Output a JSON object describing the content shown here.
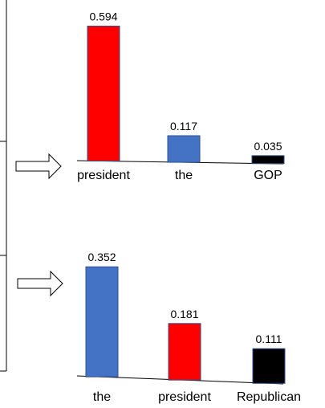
{
  "chart_data": [
    {
      "type": "bar",
      "categories": [
        "president",
        "the",
        "GOP"
      ],
      "values": [
        0.594,
        0.117,
        0.035
      ],
      "data_labels": [
        "0.594",
        "0.117",
        "0.035"
      ],
      "colors": [
        "#ff0000",
        "#4472c4",
        "#000000"
      ],
      "ylim": [
        0,
        0.594
      ]
    },
    {
      "type": "bar",
      "categories": [
        "the",
        "president",
        "Republican"
      ],
      "values": [
        0.352,
        0.181,
        0.111
      ],
      "data_labels": [
        "0.352",
        "0.181",
        "0.111"
      ],
      "colors": [
        "#4472c4",
        "#ff0000",
        "#000000"
      ],
      "ylim": [
        0,
        0.352
      ]
    }
  ]
}
